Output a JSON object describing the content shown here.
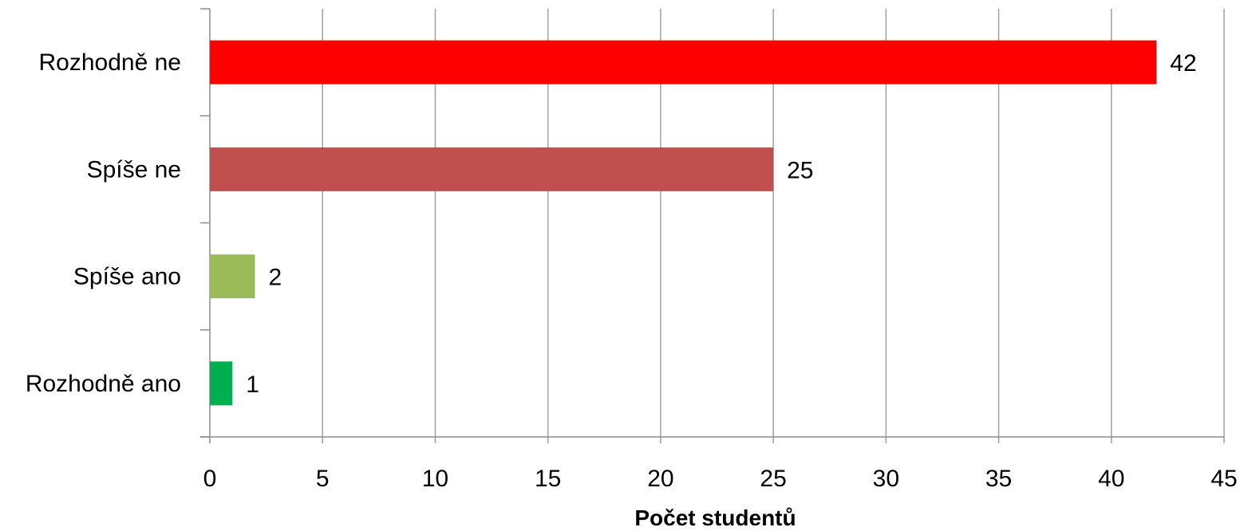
{
  "chart_data": {
    "type": "bar",
    "orientation": "horizontal",
    "categories": [
      "Rozhodně ne",
      "Spíše ne",
      "Spíše ano",
      "Rozhodně ano"
    ],
    "values": [
      42,
      25,
      2,
      1
    ],
    "colors": [
      "#ff0000",
      "#c0504d",
      "#9bbb59",
      "#00b050"
    ],
    "xlabel": "Počet studentů",
    "ylabel": "",
    "xlim": [
      0,
      45
    ],
    "x_ticks": [
      0,
      5,
      10,
      15,
      20,
      25,
      30,
      35,
      40,
      45
    ],
    "gridlines": "vertical",
    "gridline_color": "#a0a0a0",
    "data_labels": true,
    "legend": "none"
  }
}
